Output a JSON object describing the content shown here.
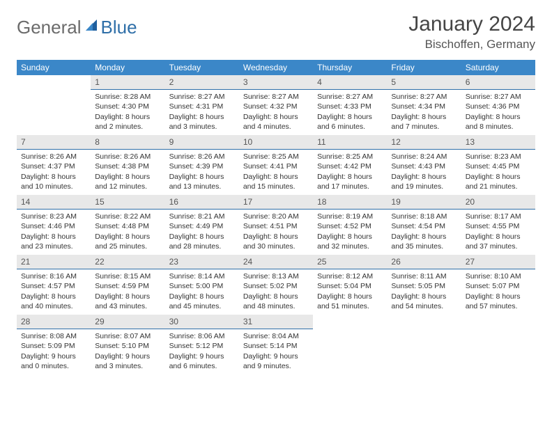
{
  "logo": {
    "general": "General",
    "blue": "Blue"
  },
  "title": "January 2024",
  "location": "Bischoffen, Germany",
  "weekdays": [
    "Sunday",
    "Monday",
    "Tuesday",
    "Wednesday",
    "Thursday",
    "Friday",
    "Saturday"
  ],
  "colors": {
    "header_bg": "#3b87c8",
    "header_text": "#ffffff",
    "daynum_bg": "#e8e8e8",
    "daynum_border": "#2f6fa8",
    "logo_gray": "#6b6b6b",
    "logo_blue": "#2f6fa8"
  },
  "weeks": [
    [
      {
        "n": "",
        "sunrise": "",
        "sunset": "",
        "daylight": ""
      },
      {
        "n": "1",
        "sunrise": "Sunrise: 8:28 AM",
        "sunset": "Sunset: 4:30 PM",
        "daylight": "Daylight: 8 hours and 2 minutes."
      },
      {
        "n": "2",
        "sunrise": "Sunrise: 8:27 AM",
        "sunset": "Sunset: 4:31 PM",
        "daylight": "Daylight: 8 hours and 3 minutes."
      },
      {
        "n": "3",
        "sunrise": "Sunrise: 8:27 AM",
        "sunset": "Sunset: 4:32 PM",
        "daylight": "Daylight: 8 hours and 4 minutes."
      },
      {
        "n": "4",
        "sunrise": "Sunrise: 8:27 AM",
        "sunset": "Sunset: 4:33 PM",
        "daylight": "Daylight: 8 hours and 6 minutes."
      },
      {
        "n": "5",
        "sunrise": "Sunrise: 8:27 AM",
        "sunset": "Sunset: 4:34 PM",
        "daylight": "Daylight: 8 hours and 7 minutes."
      },
      {
        "n": "6",
        "sunrise": "Sunrise: 8:27 AM",
        "sunset": "Sunset: 4:36 PM",
        "daylight": "Daylight: 8 hours and 8 minutes."
      }
    ],
    [
      {
        "n": "7",
        "sunrise": "Sunrise: 8:26 AM",
        "sunset": "Sunset: 4:37 PM",
        "daylight": "Daylight: 8 hours and 10 minutes."
      },
      {
        "n": "8",
        "sunrise": "Sunrise: 8:26 AM",
        "sunset": "Sunset: 4:38 PM",
        "daylight": "Daylight: 8 hours and 12 minutes."
      },
      {
        "n": "9",
        "sunrise": "Sunrise: 8:26 AM",
        "sunset": "Sunset: 4:39 PM",
        "daylight": "Daylight: 8 hours and 13 minutes."
      },
      {
        "n": "10",
        "sunrise": "Sunrise: 8:25 AM",
        "sunset": "Sunset: 4:41 PM",
        "daylight": "Daylight: 8 hours and 15 minutes."
      },
      {
        "n": "11",
        "sunrise": "Sunrise: 8:25 AM",
        "sunset": "Sunset: 4:42 PM",
        "daylight": "Daylight: 8 hours and 17 minutes."
      },
      {
        "n": "12",
        "sunrise": "Sunrise: 8:24 AM",
        "sunset": "Sunset: 4:43 PM",
        "daylight": "Daylight: 8 hours and 19 minutes."
      },
      {
        "n": "13",
        "sunrise": "Sunrise: 8:23 AM",
        "sunset": "Sunset: 4:45 PM",
        "daylight": "Daylight: 8 hours and 21 minutes."
      }
    ],
    [
      {
        "n": "14",
        "sunrise": "Sunrise: 8:23 AM",
        "sunset": "Sunset: 4:46 PM",
        "daylight": "Daylight: 8 hours and 23 minutes."
      },
      {
        "n": "15",
        "sunrise": "Sunrise: 8:22 AM",
        "sunset": "Sunset: 4:48 PM",
        "daylight": "Daylight: 8 hours and 25 minutes."
      },
      {
        "n": "16",
        "sunrise": "Sunrise: 8:21 AM",
        "sunset": "Sunset: 4:49 PM",
        "daylight": "Daylight: 8 hours and 28 minutes."
      },
      {
        "n": "17",
        "sunrise": "Sunrise: 8:20 AM",
        "sunset": "Sunset: 4:51 PM",
        "daylight": "Daylight: 8 hours and 30 minutes."
      },
      {
        "n": "18",
        "sunrise": "Sunrise: 8:19 AM",
        "sunset": "Sunset: 4:52 PM",
        "daylight": "Daylight: 8 hours and 32 minutes."
      },
      {
        "n": "19",
        "sunrise": "Sunrise: 8:18 AM",
        "sunset": "Sunset: 4:54 PM",
        "daylight": "Daylight: 8 hours and 35 minutes."
      },
      {
        "n": "20",
        "sunrise": "Sunrise: 8:17 AM",
        "sunset": "Sunset: 4:55 PM",
        "daylight": "Daylight: 8 hours and 37 minutes."
      }
    ],
    [
      {
        "n": "21",
        "sunrise": "Sunrise: 8:16 AM",
        "sunset": "Sunset: 4:57 PM",
        "daylight": "Daylight: 8 hours and 40 minutes."
      },
      {
        "n": "22",
        "sunrise": "Sunrise: 8:15 AM",
        "sunset": "Sunset: 4:59 PM",
        "daylight": "Daylight: 8 hours and 43 minutes."
      },
      {
        "n": "23",
        "sunrise": "Sunrise: 8:14 AM",
        "sunset": "Sunset: 5:00 PM",
        "daylight": "Daylight: 8 hours and 45 minutes."
      },
      {
        "n": "24",
        "sunrise": "Sunrise: 8:13 AM",
        "sunset": "Sunset: 5:02 PM",
        "daylight": "Daylight: 8 hours and 48 minutes."
      },
      {
        "n": "25",
        "sunrise": "Sunrise: 8:12 AM",
        "sunset": "Sunset: 5:04 PM",
        "daylight": "Daylight: 8 hours and 51 minutes."
      },
      {
        "n": "26",
        "sunrise": "Sunrise: 8:11 AM",
        "sunset": "Sunset: 5:05 PM",
        "daylight": "Daylight: 8 hours and 54 minutes."
      },
      {
        "n": "27",
        "sunrise": "Sunrise: 8:10 AM",
        "sunset": "Sunset: 5:07 PM",
        "daylight": "Daylight: 8 hours and 57 minutes."
      }
    ],
    [
      {
        "n": "28",
        "sunrise": "Sunrise: 8:08 AM",
        "sunset": "Sunset: 5:09 PM",
        "daylight": "Daylight: 9 hours and 0 minutes."
      },
      {
        "n": "29",
        "sunrise": "Sunrise: 8:07 AM",
        "sunset": "Sunset: 5:10 PM",
        "daylight": "Daylight: 9 hours and 3 minutes."
      },
      {
        "n": "30",
        "sunrise": "Sunrise: 8:06 AM",
        "sunset": "Sunset: 5:12 PM",
        "daylight": "Daylight: 9 hours and 6 minutes."
      },
      {
        "n": "31",
        "sunrise": "Sunrise: 8:04 AM",
        "sunset": "Sunset: 5:14 PM",
        "daylight": "Daylight: 9 hours and 9 minutes."
      },
      {
        "n": "",
        "sunrise": "",
        "sunset": "",
        "daylight": ""
      },
      {
        "n": "",
        "sunrise": "",
        "sunset": "",
        "daylight": ""
      },
      {
        "n": "",
        "sunrise": "",
        "sunset": "",
        "daylight": ""
      }
    ]
  ]
}
